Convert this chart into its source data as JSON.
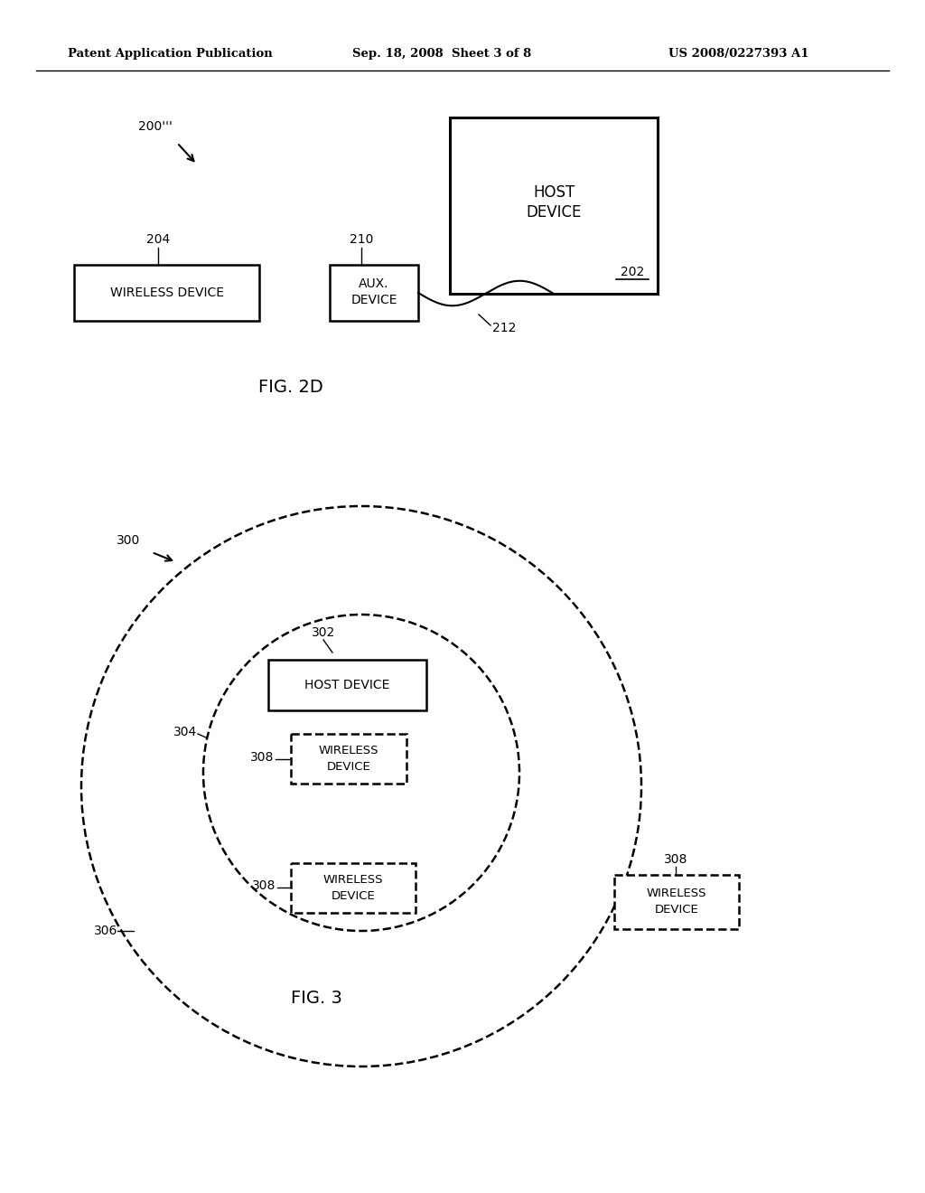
{
  "bg_color": "#ffffff",
  "header_left": "Patent Application Publication",
  "header_mid": "Sep. 18, 2008  Sheet 3 of 8",
  "header_right": "US 2008/0227393 A1",
  "fig2d_label": "FIG. 2D",
  "fig3_label": "FIG. 3",
  "fig_size": [
    10.24,
    13.2
  ],
  "dpi": 100
}
